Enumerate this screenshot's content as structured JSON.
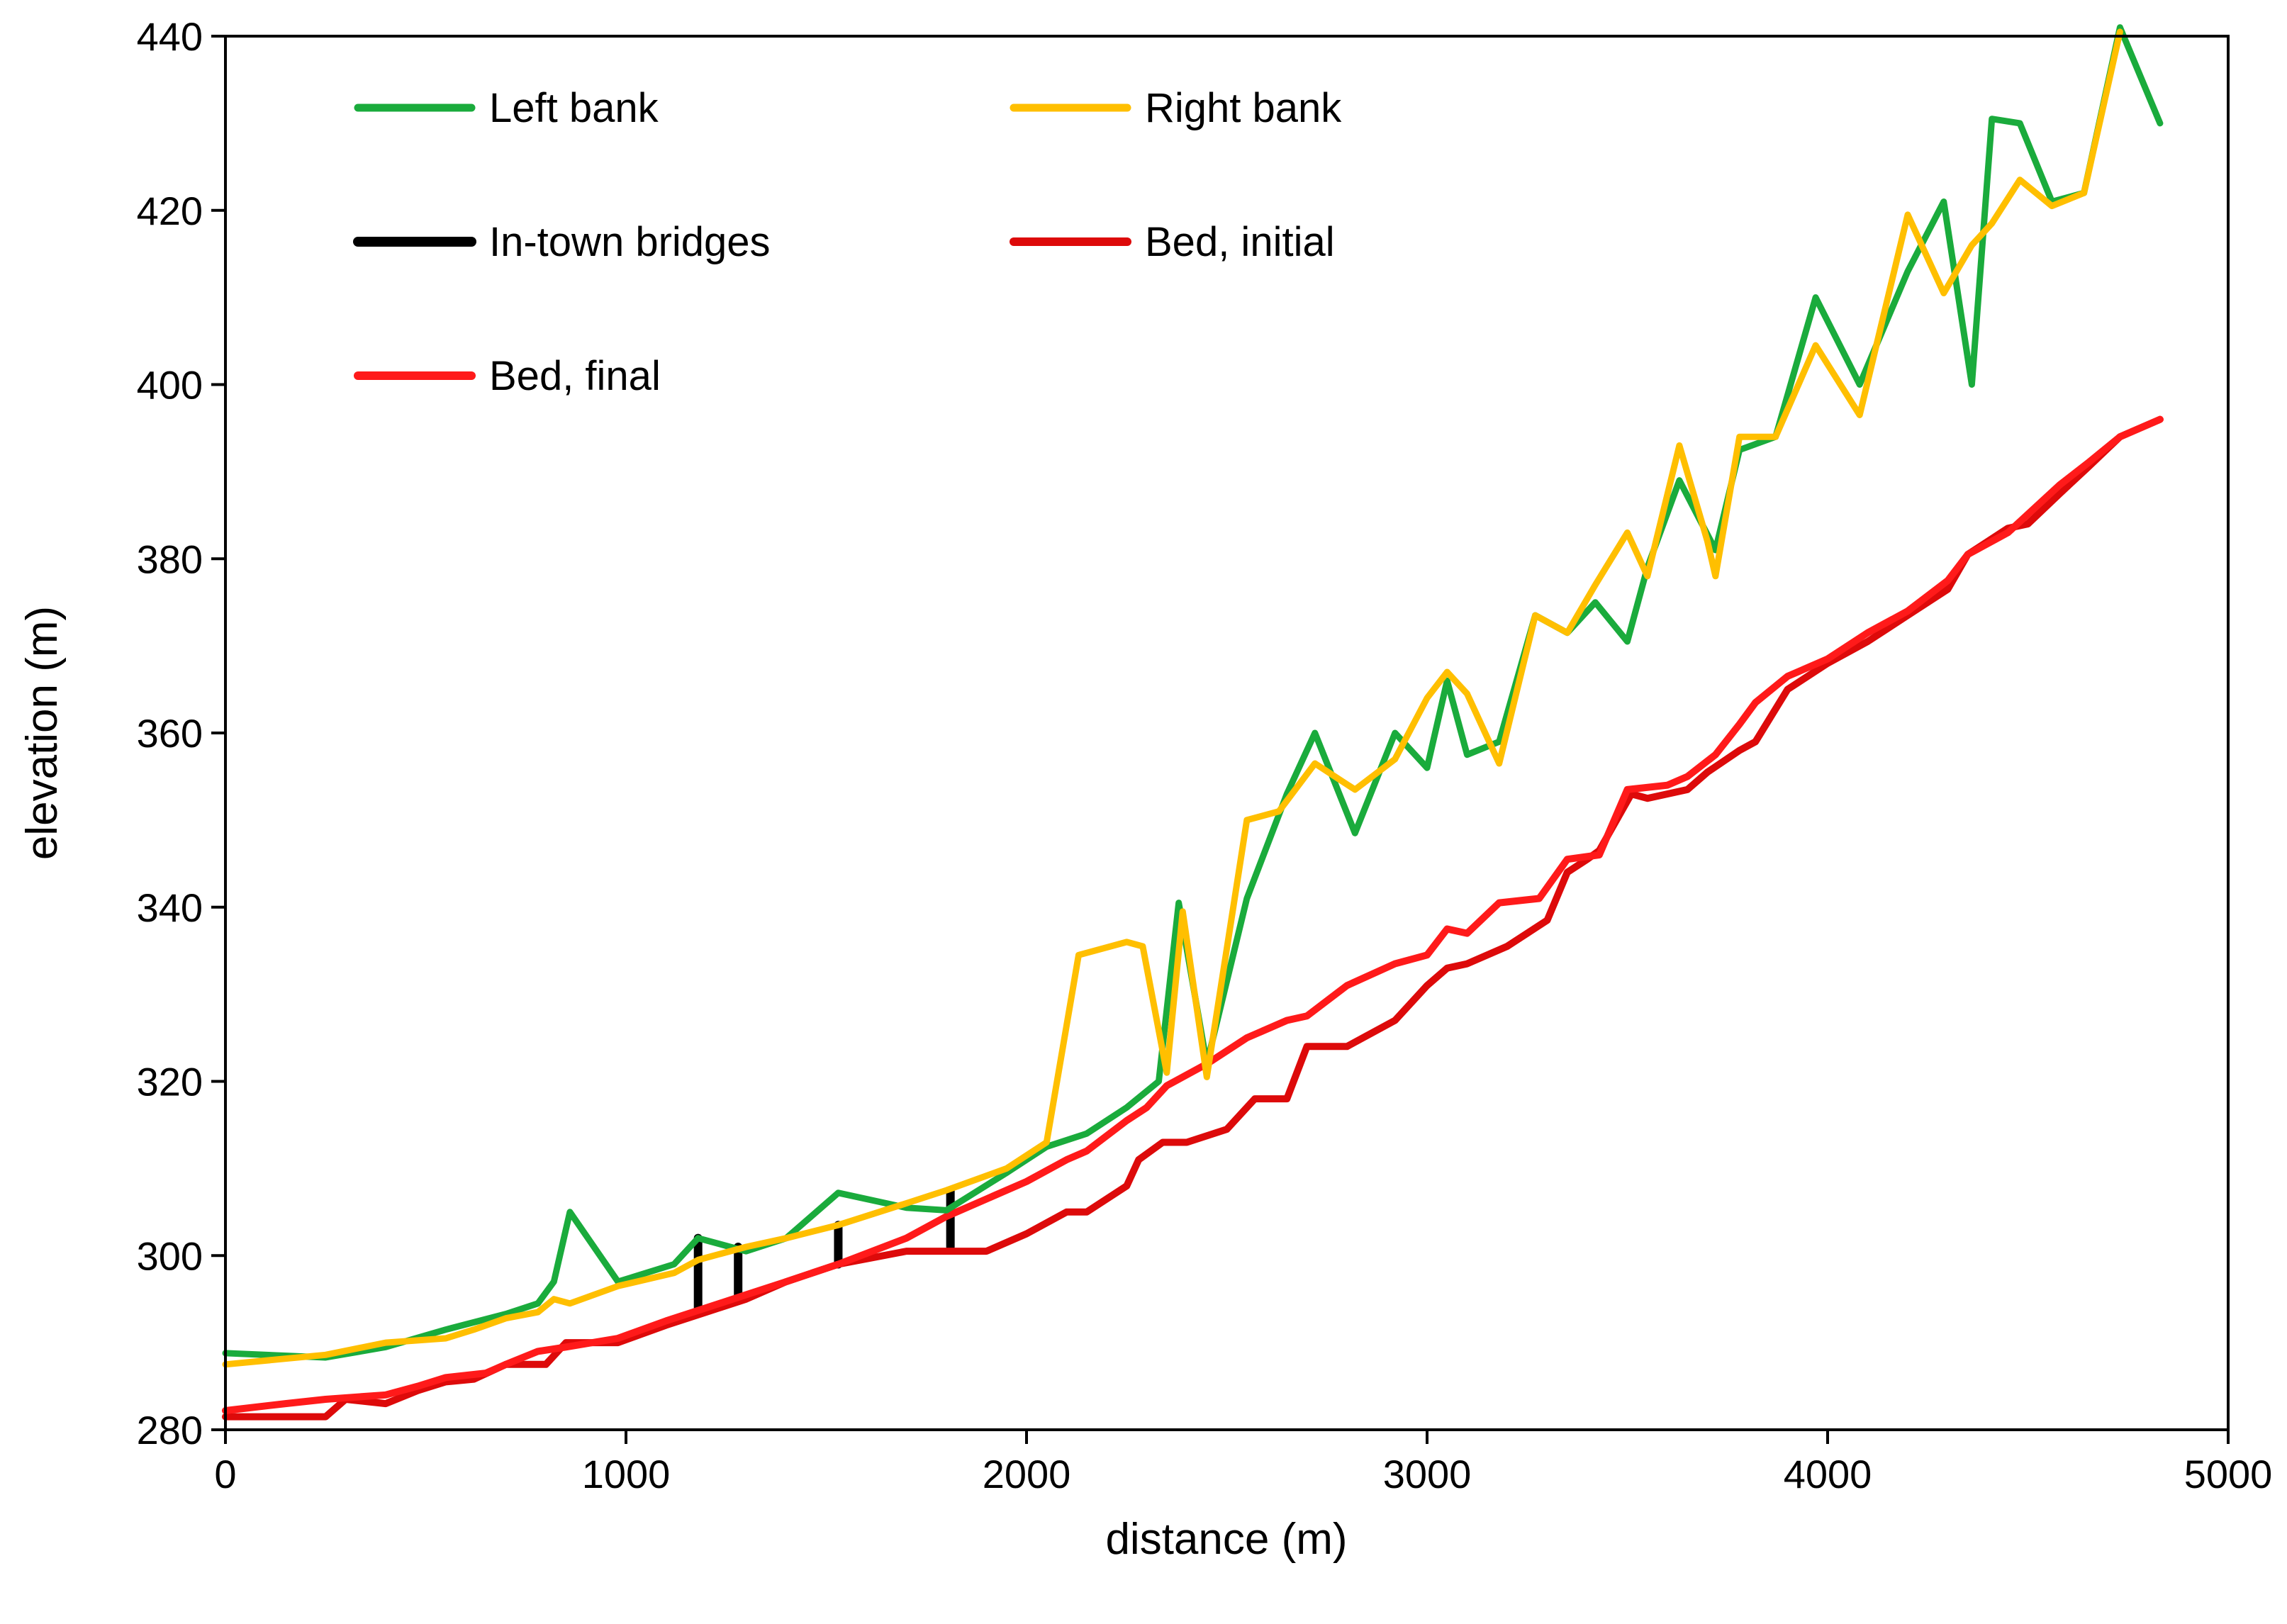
{
  "chart_data": {
    "type": "line",
    "title": "",
    "xlabel": "distance (m)",
    "ylabel": "elevation (m)",
    "xlim": [
      0,
      5000
    ],
    "ylim": [
      280,
      440
    ],
    "xticks": [
      0,
      1000,
      2000,
      3000,
      4000,
      5000
    ],
    "yticks": [
      280,
      300,
      320,
      340,
      360,
      380,
      400,
      420,
      440
    ],
    "grid": false,
    "legend_position": "top-left, inside plot, two columns",
    "series": [
      {
        "name": "Left bank",
        "color": "#1aab3c",
        "points": [
          [
            0,
            288.8
          ],
          [
            250,
            288.3
          ],
          [
            400,
            289.5
          ],
          [
            550,
            291.5
          ],
          [
            700,
            293.3
          ],
          [
            780,
            294.5
          ],
          [
            820,
            297
          ],
          [
            860,
            305
          ],
          [
            980,
            297
          ],
          [
            1120,
            299
          ],
          [
            1180,
            302
          ],
          [
            1300,
            300.5
          ],
          [
            1400,
            302
          ],
          [
            1530,
            307.2
          ],
          [
            1700,
            305.5
          ],
          [
            1800,
            305.2
          ],
          [
            1950,
            309.5
          ],
          [
            2050,
            312.5
          ],
          [
            2150,
            314
          ],
          [
            2250,
            317
          ],
          [
            2330,
            320
          ],
          [
            2380,
            340.5
          ],
          [
            2450,
            322
          ],
          [
            2550,
            341
          ],
          [
            2650,
            353
          ],
          [
            2720,
            360
          ],
          [
            2820,
            348.5
          ],
          [
            2920,
            360
          ],
          [
            3000,
            356
          ],
          [
            3050,
            366
          ],
          [
            3100,
            357.5
          ],
          [
            3180,
            359
          ],
          [
            3270,
            373.5
          ],
          [
            3350,
            371.5
          ],
          [
            3420,
            375
          ],
          [
            3500,
            370.5
          ],
          [
            3550,
            379
          ],
          [
            3630,
            389
          ],
          [
            3720,
            381
          ],
          [
            3780,
            392.5
          ],
          [
            3870,
            394
          ],
          [
            3970,
            410
          ],
          [
            4080,
            400
          ],
          [
            4200,
            413
          ],
          [
            4290,
            421
          ],
          [
            4360,
            400
          ],
          [
            4410,
            430.5
          ],
          [
            4480,
            430
          ],
          [
            4560,
            421
          ],
          [
            4640,
            422
          ],
          [
            4730,
            441
          ],
          [
            4830,
            430
          ]
        ]
      },
      {
        "name": "Right bank",
        "color": "#ffbf00",
        "points": [
          [
            0,
            287.5
          ],
          [
            250,
            288.6
          ],
          [
            400,
            290
          ],
          [
            550,
            290.5
          ],
          [
            620,
            291.5
          ],
          [
            700,
            292.8
          ],
          [
            780,
            293.5
          ],
          [
            820,
            295
          ],
          [
            860,
            294.5
          ],
          [
            980,
            296.5
          ],
          [
            1120,
            298
          ],
          [
            1180,
            299.5
          ],
          [
            1300,
            301
          ],
          [
            1400,
            302
          ],
          [
            1530,
            303.5
          ],
          [
            1700,
            306
          ],
          [
            1800,
            307.5
          ],
          [
            1950,
            310
          ],
          [
            2050,
            313
          ],
          [
            2130,
            334.5
          ],
          [
            2250,
            336
          ],
          [
            2290,
            335.5
          ],
          [
            2350,
            321
          ],
          [
            2390,
            339.5
          ],
          [
            2450,
            320.5
          ],
          [
            2550,
            350
          ],
          [
            2630,
            351
          ],
          [
            2720,
            356.5
          ],
          [
            2820,
            353.5
          ],
          [
            2920,
            357
          ],
          [
            3000,
            364
          ],
          [
            3050,
            367
          ],
          [
            3100,
            364.5
          ],
          [
            3180,
            356.5
          ],
          [
            3270,
            373.5
          ],
          [
            3350,
            371.5
          ],
          [
            3420,
            377
          ],
          [
            3500,
            383
          ],
          [
            3550,
            378
          ],
          [
            3630,
            393
          ],
          [
            3700,
            382
          ],
          [
            3720,
            378
          ],
          [
            3780,
            394
          ],
          [
            3870,
            394
          ],
          [
            3970,
            404.5
          ],
          [
            4080,
            396.5
          ],
          [
            4200,
            419.5
          ],
          [
            4290,
            410.5
          ],
          [
            4360,
            416
          ],
          [
            4410,
            418.5
          ],
          [
            4480,
            423.5
          ],
          [
            4560,
            420.5
          ],
          [
            4640,
            422
          ],
          [
            4730,
            440.5
          ]
        ]
      },
      {
        "name": "In-town bridges",
        "color": "#000000",
        "segments": [
          [
            1180,
            294,
            302
          ],
          [
            1280,
            295,
            301
          ],
          [
            1530,
            299,
            303.5
          ],
          [
            1810,
            301,
            307.5
          ]
        ]
      },
      {
        "name": "Bed, initial",
        "color": "#dd0a0a",
        "points": [
          [
            0,
            281.5
          ],
          [
            150,
            281.5
          ],
          [
            250,
            281.5
          ],
          [
            300,
            283.5
          ],
          [
            400,
            283
          ],
          [
            480,
            284.5
          ],
          [
            550,
            285.5
          ],
          [
            620,
            285.8
          ],
          [
            700,
            287.5
          ],
          [
            800,
            287.5
          ],
          [
            850,
            290
          ],
          [
            980,
            290
          ],
          [
            1100,
            292
          ],
          [
            1200,
            293.5
          ],
          [
            1300,
            295
          ],
          [
            1400,
            297
          ],
          [
            1530,
            299
          ],
          [
            1700,
            300.5
          ],
          [
            1900,
            300.5
          ],
          [
            2000,
            302.5
          ],
          [
            2100,
            305
          ],
          [
            2150,
            305
          ],
          [
            2250,
            308
          ],
          [
            2280,
            311
          ],
          [
            2340,
            313
          ],
          [
            2400,
            313
          ],
          [
            2500,
            314.5
          ],
          [
            2570,
            318
          ],
          [
            2650,
            318
          ],
          [
            2700,
            324
          ],
          [
            2800,
            324
          ],
          [
            2920,
            327
          ],
          [
            3000,
            331
          ],
          [
            3050,
            333
          ],
          [
            3100,
            333.5
          ],
          [
            3200,
            335.5
          ],
          [
            3300,
            338.5
          ],
          [
            3350,
            344
          ],
          [
            3400,
            345.5
          ],
          [
            3430,
            346.5
          ],
          [
            3510,
            353
          ],
          [
            3550,
            352.5
          ],
          [
            3650,
            353.5
          ],
          [
            3700,
            355.5
          ],
          [
            3780,
            358
          ],
          [
            3820,
            359
          ],
          [
            3900,
            365
          ],
          [
            4000,
            368
          ],
          [
            4100,
            370.5
          ],
          [
            4200,
            373.5
          ],
          [
            4300,
            376.5
          ],
          [
            4350,
            380.5
          ],
          [
            4400,
            382
          ],
          [
            4450,
            383.5
          ],
          [
            4500,
            384
          ],
          [
            4580,
            387.5
          ],
          [
            4650,
            390.5
          ],
          [
            4730,
            394
          ],
          [
            4830,
            396
          ]
        ]
      },
      {
        "name": "Bed, final",
        "color": "#ff1a1a",
        "points": [
          [
            0,
            282.2
          ],
          [
            150,
            283
          ],
          [
            250,
            283.5
          ],
          [
            400,
            284
          ],
          [
            480,
            285
          ],
          [
            550,
            286
          ],
          [
            650,
            286.5
          ],
          [
            700,
            287.5
          ],
          [
            780,
            289
          ],
          [
            850,
            289.5
          ],
          [
            980,
            290.5
          ],
          [
            1100,
            292.5
          ],
          [
            1200,
            294
          ],
          [
            1300,
            295.5
          ],
          [
            1400,
            297
          ],
          [
            1530,
            299
          ],
          [
            1700,
            302
          ],
          [
            1800,
            304.5
          ],
          [
            1900,
            306.5
          ],
          [
            2000,
            308.5
          ],
          [
            2100,
            311
          ],
          [
            2150,
            312
          ],
          [
            2250,
            315.5
          ],
          [
            2300,
            317
          ],
          [
            2350,
            319.5
          ],
          [
            2450,
            322
          ],
          [
            2550,
            325
          ],
          [
            2650,
            327
          ],
          [
            2700,
            327.5
          ],
          [
            2800,
            331
          ],
          [
            2920,
            333.5
          ],
          [
            3000,
            334.5
          ],
          [
            3050,
            337.5
          ],
          [
            3100,
            337
          ],
          [
            3180,
            340.5
          ],
          [
            3280,
            341
          ],
          [
            3350,
            345.5
          ],
          [
            3430,
            346
          ],
          [
            3500,
            353.5
          ],
          [
            3600,
            354
          ],
          [
            3650,
            355
          ],
          [
            3720,
            357.5
          ],
          [
            3780,
            361
          ],
          [
            3820,
            363.5
          ],
          [
            3900,
            366.5
          ],
          [
            4000,
            368.5
          ],
          [
            4100,
            371.5
          ],
          [
            4200,
            374
          ],
          [
            4300,
            377.5
          ],
          [
            4350,
            380.5
          ],
          [
            4450,
            383
          ],
          [
            4580,
            388.5
          ],
          [
            4650,
            391
          ],
          [
            4730,
            394
          ],
          [
            4830,
            396
          ]
        ]
      }
    ]
  }
}
